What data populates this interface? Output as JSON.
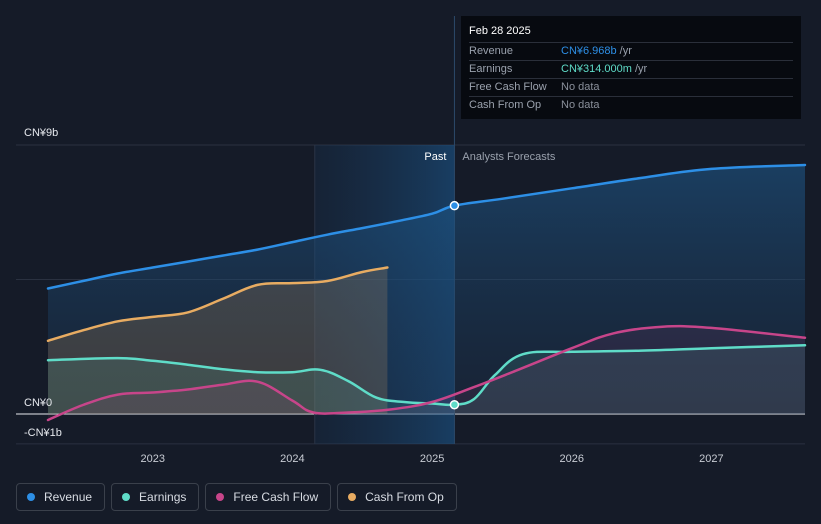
{
  "colors": {
    "background": "#151b28",
    "revenue": "#2d8fe6",
    "earnings": "#5fdcc8",
    "free_cash_flow": "#c7458a",
    "cash_from_op": "#e8ac62"
  },
  "tooltip": {
    "date": "Feb 28 2025",
    "rows": [
      {
        "label": "Revenue",
        "value": "CN¥6.968b",
        "unit": "/yr",
        "color": "#2d8fe6"
      },
      {
        "label": "Earnings",
        "value": "CN¥314.000m",
        "unit": "/yr",
        "color": "#5fdcc8"
      },
      {
        "label": "Free Cash Flow",
        "value": "No data",
        "unit": "",
        "color": ""
      },
      {
        "label": "Cash From Op",
        "value": "No data",
        "unit": "",
        "color": ""
      }
    ]
  },
  "legend": [
    {
      "label": "Revenue",
      "color": "#2d8fe6"
    },
    {
      "label": "Earnings",
      "color": "#5fdcc8"
    },
    {
      "label": "Free Cash Flow",
      "color": "#c7458a"
    },
    {
      "label": "Cash From Op",
      "color": "#e8ac62"
    }
  ],
  "chart_data": {
    "type": "line",
    "y_labels": [
      "CN¥9b",
      "CN¥0",
      "-CN¥1b"
    ],
    "ylim": [
      -1,
      9
    ],
    "xlim": [
      2022.25,
      2027.67
    ],
    "x_ticks": [
      "2023",
      "2024",
      "2025",
      "2026",
      "2027"
    ],
    "x_tick_values": [
      2023,
      2024,
      2025,
      2026,
      2027
    ],
    "past_label": "Past",
    "forecast_label": "Analysts Forecasts",
    "past_region_start": 2024.16,
    "divider_x": 2025.16,
    "grid": true,
    "series": [
      {
        "name": "Revenue",
        "x": [
          2022.25,
          2022.5,
          2022.75,
          2023.0,
          2023.25,
          2023.5,
          2023.75,
          2024.0,
          2024.25,
          2024.5,
          2024.75,
          2025.0,
          2025.16,
          2025.5,
          2026.0,
          2026.5,
          2027.0,
          2027.67
        ],
        "values": [
          4.2,
          4.45,
          4.7,
          4.9,
          5.1,
          5.3,
          5.5,
          5.75,
          6.0,
          6.22,
          6.45,
          6.7,
          6.97,
          7.2,
          7.55,
          7.9,
          8.2,
          8.33
        ]
      },
      {
        "name": "Earnings",
        "x": [
          2022.25,
          2022.75,
          2023.0,
          2023.25,
          2023.5,
          2023.75,
          2024.0,
          2024.2,
          2024.4,
          2024.6,
          2024.8,
          2025.0,
          2025.16,
          2025.3,
          2025.45,
          2025.65,
          2026.0,
          2026.5,
          2027.0,
          2027.67
        ],
        "values": [
          1.8,
          1.87,
          1.78,
          1.65,
          1.5,
          1.4,
          1.4,
          1.48,
          1.1,
          0.55,
          0.4,
          0.35,
          0.31,
          0.5,
          1.3,
          2.0,
          2.08,
          2.12,
          2.2,
          2.3
        ]
      },
      {
        "name": "Free Cash Flow",
        "x": [
          2022.25,
          2022.5,
          2022.75,
          2023.0,
          2023.25,
          2023.5,
          2023.75,
          2024.0,
          2024.15,
          2024.4,
          2024.7,
          2025.0,
          2025.3,
          2025.6,
          2026.0,
          2026.3,
          2026.65,
          2027.0,
          2027.67
        ],
        "values": [
          -0.2,
          0.3,
          0.65,
          0.72,
          0.82,
          0.98,
          1.08,
          0.45,
          0.05,
          0.05,
          0.15,
          0.4,
          0.9,
          1.45,
          2.2,
          2.7,
          2.92,
          2.88,
          2.55
        ]
      },
      {
        "name": "Cash From Op",
        "x": [
          2022.25,
          2022.5,
          2022.75,
          2023.0,
          2023.25,
          2023.5,
          2023.75,
          2024.0,
          2024.25,
          2024.5,
          2024.68
        ],
        "values": [
          2.45,
          2.8,
          3.1,
          3.25,
          3.4,
          3.85,
          4.32,
          4.38,
          4.45,
          4.75,
          4.9
        ]
      }
    ],
    "highlight_points": [
      {
        "series": "Revenue",
        "x": 2025.16,
        "y": 6.97
      },
      {
        "series": "Earnings",
        "x": 2025.16,
        "y": 0.31
      }
    ]
  }
}
